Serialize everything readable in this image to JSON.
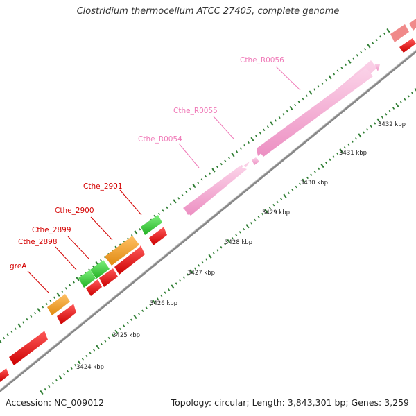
{
  "title": "Clostridium thermocellum ATCC 27405, complete genome",
  "footer": {
    "accession": "Accession: NC_009012",
    "summary": "Topology: circular; Length: 3,843,301 bp; Genes: 3,259"
  },
  "colors": {
    "backbone": "#8c8c8c",
    "tick": "#2e7d32",
    "cds_red": "#e8000b",
    "cds_green": "#2ecc40",
    "cds_orange": "#f39a1f",
    "rna_pink": "#f4a6cf",
    "label_red": "#d40000",
    "label_pink": "#f07ab8"
  },
  "gene_labels": [
    {
      "text": "Cthe_R0056",
      "color": "pink"
    },
    {
      "text": "Cthe_R0055",
      "color": "pink"
    },
    {
      "text": "Cthe_R0054",
      "color": "pink"
    },
    {
      "text": "Cthe_2901",
      "color": "red"
    },
    {
      "text": "Cthe_2900",
      "color": "red"
    },
    {
      "text": "Cthe_2899",
      "color": "red"
    },
    {
      "text": "Cthe_2898",
      "color": "red"
    },
    {
      "text": "greA",
      "color": "red"
    }
  ],
  "kbp_labels": [
    "3432 kbp",
    "3431 kbp",
    "3430 kbp",
    "3429 kbp",
    "3428 kbp",
    "3427 kbp",
    "3426 kbp",
    "3425 kbp",
    "3424 kbp"
  ]
}
